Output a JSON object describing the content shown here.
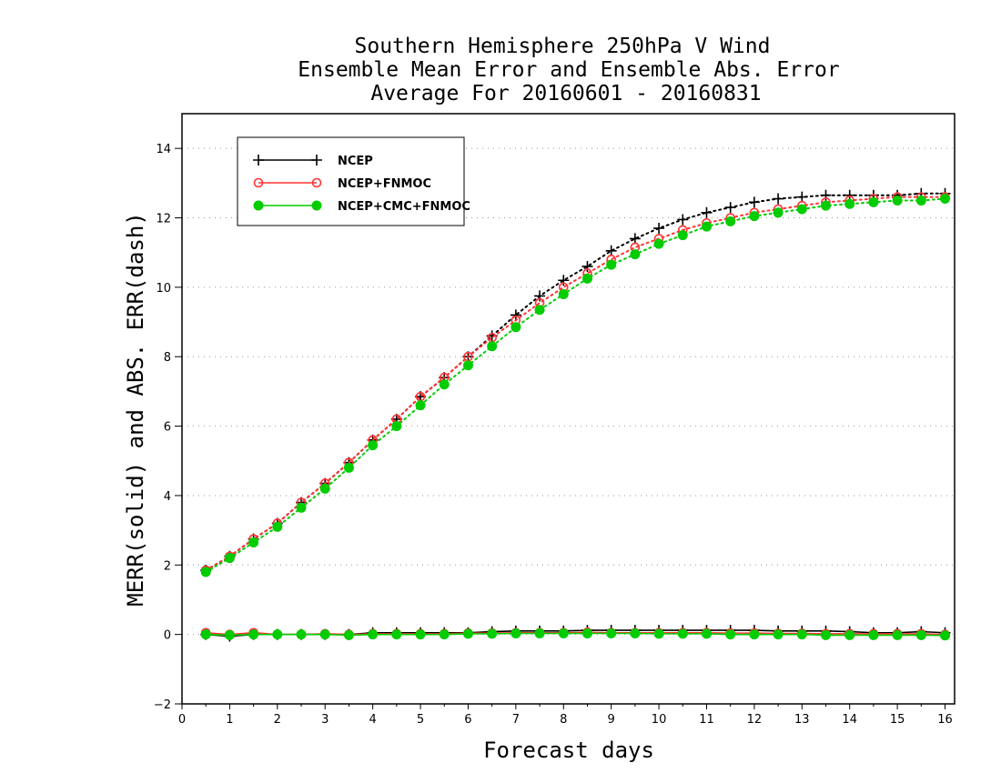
{
  "chart_data": {
    "type": "line",
    "title": [
      "Southern Hemisphere 250hPa V Wind",
      "Ensemble Mean Error and Ensemble Abs. Error",
      "Average For 20160601 - 20160831"
    ],
    "xlabel": "Forecast days",
    "ylabel": "MERR(solid) and ABS. ERR(dash)",
    "xlim": [
      0,
      16.2
    ],
    "ylim": [
      -2,
      15
    ],
    "x_ticks": [
      "0",
      "1",
      "2",
      "3",
      "4",
      "5",
      "6",
      "7",
      "8",
      "9",
      "10",
      "11",
      "12",
      "13",
      "14",
      "15",
      "16"
    ],
    "y_ticks": [
      "−2",
      "0",
      "2",
      "4",
      "6",
      "8",
      "10",
      "12",
      "14"
    ],
    "grid": "horizontal dotted",
    "legend_position": "top-left",
    "x": [
      0.5,
      1,
      1.5,
      2,
      2.5,
      3,
      3.5,
      4,
      4.5,
      5,
      5.5,
      6,
      6.5,
      7,
      7.5,
      8,
      8.5,
      9,
      9.5,
      10,
      10.5,
      11,
      11.5,
      12,
      12.5,
      13,
      13.5,
      14,
      14.5,
      15,
      15.5,
      16
    ],
    "series": [
      {
        "name": "NCEP",
        "color": "#000000",
        "marker": "plus",
        "abs_err": [
          1.85,
          2.25,
          2.75,
          3.2,
          3.8,
          4.35,
          4.95,
          5.6,
          6.2,
          6.85,
          7.4,
          8.0,
          8.6,
          9.2,
          9.75,
          10.2,
          10.6,
          11.05,
          11.4,
          11.7,
          11.95,
          12.15,
          12.3,
          12.45,
          12.55,
          12.6,
          12.65,
          12.65,
          12.65,
          12.65,
          12.7,
          12.7
        ],
        "mean_err": [
          0.0,
          -0.05,
          0.0,
          0.0,
          0.0,
          0.0,
          0.0,
          0.05,
          0.05,
          0.05,
          0.05,
          0.05,
          0.08,
          0.1,
          0.1,
          0.1,
          0.12,
          0.12,
          0.12,
          0.12,
          0.12,
          0.12,
          0.12,
          0.12,
          0.1,
          0.1,
          0.1,
          0.08,
          0.05,
          0.05,
          0.08,
          0.05
        ]
      },
      {
        "name": "NCEP+FNMOC",
        "color": "#ff3333",
        "marker": "open-circle",
        "abs_err": [
          1.85,
          2.25,
          2.75,
          3.2,
          3.8,
          4.35,
          4.95,
          5.6,
          6.2,
          6.85,
          7.4,
          8.0,
          8.55,
          9.05,
          9.55,
          10.0,
          10.4,
          10.8,
          11.15,
          11.4,
          11.65,
          11.85,
          12.0,
          12.15,
          12.25,
          12.35,
          12.45,
          12.5,
          12.55,
          12.6,
          12.6,
          12.6
        ],
        "mean_err": [
          0.05,
          0.0,
          0.05,
          0.0,
          0.0,
          0.02,
          0.0,
          0.02,
          0.02,
          0.02,
          0.02,
          0.04,
          0.04,
          0.05,
          0.05,
          0.05,
          0.06,
          0.05,
          0.05,
          0.05,
          0.05,
          0.05,
          0.04,
          0.04,
          0.03,
          0.03,
          0.02,
          0.02,
          0.02,
          0.02,
          0.02,
          0.0
        ]
      },
      {
        "name": "NCEP+CMC+FNMOC",
        "color": "#00cc00",
        "marker": "filled-circle",
        "abs_err": [
          1.8,
          2.2,
          2.65,
          3.1,
          3.65,
          4.2,
          4.8,
          5.45,
          6.0,
          6.6,
          7.2,
          7.75,
          8.3,
          8.85,
          9.35,
          9.8,
          10.25,
          10.65,
          10.95,
          11.25,
          11.5,
          11.75,
          11.9,
          12.05,
          12.15,
          12.25,
          12.35,
          12.4,
          12.45,
          12.5,
          12.5,
          12.55
        ],
        "mean_err": [
          0.0,
          -0.02,
          0.0,
          0.0,
          0.0,
          0.0,
          -0.02,
          0.0,
          0.0,
          0.0,
          0.0,
          0.02,
          0.02,
          0.03,
          0.03,
          0.03,
          0.03,
          0.03,
          0.03,
          0.02,
          0.02,
          0.02,
          0.0,
          0.0,
          0.0,
          0.0,
          -0.02,
          -0.02,
          -0.02,
          -0.02,
          -0.02,
          -0.03
        ]
      }
    ]
  }
}
